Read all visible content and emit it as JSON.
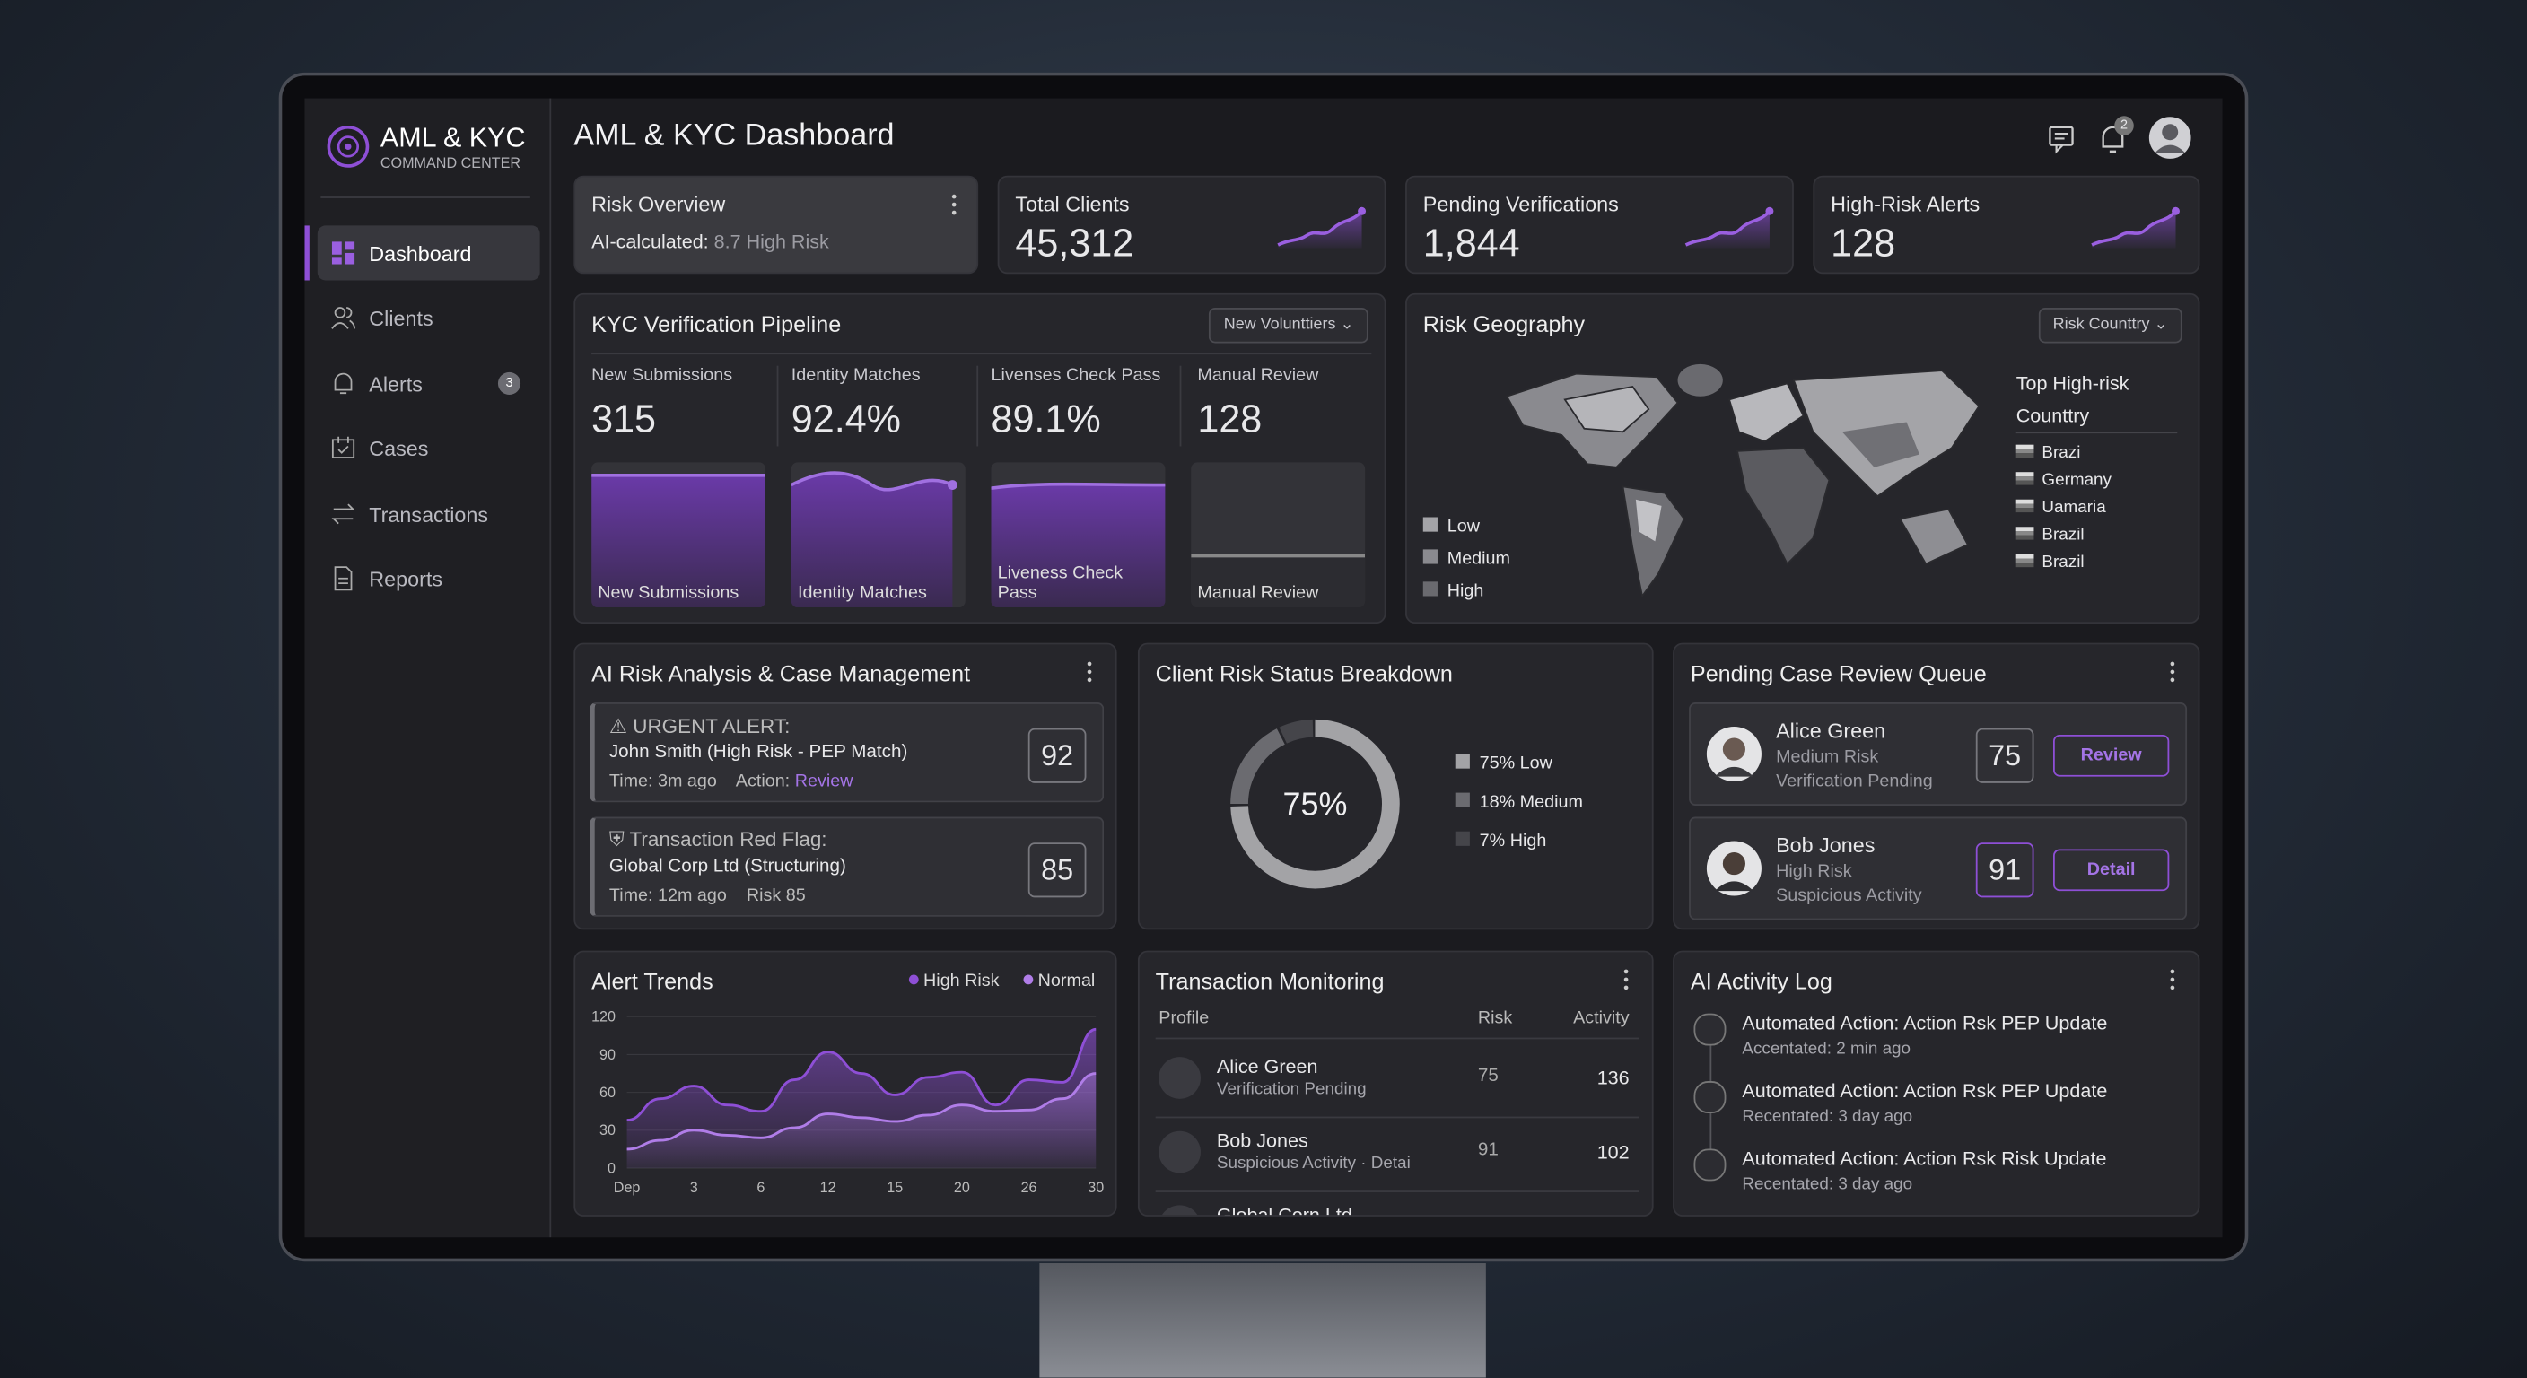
{
  "sidebar": {
    "brand": "AML & KYC",
    "subtitle": "COMMAND CENTER",
    "nav": [
      {
        "label": "Dashboard"
      },
      {
        "label": "Clients"
      },
      {
        "label": "Alerts",
        "badge": 3
      },
      {
        "label": "Cases"
      },
      {
        "label": "Transactions"
      },
      {
        "label": "Reports"
      }
    ]
  },
  "header": {
    "title": "AML & KYC Dashboard",
    "notifications": 2
  },
  "kpis": [
    {
      "label": "Risk Overview",
      "detail": "AI-calculated:",
      "detail_value": "8.7 High Risk"
    },
    {
      "label": "Total Clients",
      "value": "45,312"
    },
    {
      "label": "Pending Verifications",
      "value": "1,844"
    },
    {
      "label": "High-Risk Alerts",
      "value": 128
    }
  ],
  "pipeline": {
    "title": "KYC Verification Pipeline",
    "filter": "New Volunttiers",
    "stats": [
      {
        "label": "New Submissions",
        "value": 315
      },
      {
        "label": "Identity Matches",
        "value": "92.4%"
      },
      {
        "label": "Livenses Check Pass",
        "value": "89.1%"
      },
      {
        "label": "Manual Review",
        "value": 128
      }
    ],
    "bars": [
      "New Submissions",
      "Identity Matches",
      "Liveness Check Pass",
      "Manual Review"
    ]
  },
  "geography": {
    "title": "Risk Geography",
    "filter": "Risk Counttry",
    "legend": [
      "Low",
      "Medium",
      "High"
    ],
    "top_title": "Top High-risk Counttry",
    "countries": [
      "Brazi",
      "Germany",
      "Uamaria",
      "Brazil",
      "Brazil"
    ]
  },
  "ai_risk": {
    "title": "AI Risk Analysis & Case Management",
    "alerts": [
      {
        "heading": "URGENT ALERT:",
        "subject": "John Smith (High Risk - PEP Match)",
        "time": "Time: 3m ago",
        "action_label": "Action:",
        "action": "Review",
        "score": 92
      },
      {
        "heading": "Transaction Red Flag:",
        "subject": "Global Corp Ltd (Structuring)",
        "time": "Time: 12m ago",
        "risk": "Risk 85",
        "score": 85
      }
    ]
  },
  "risk_breakdown": {
    "title": "Client Risk Status Breakdown",
    "center_label": "75%",
    "segments": [
      {
        "label": "75% Low",
        "value": 75,
        "color": "#a3a3a6"
      },
      {
        "label": "18% Medium",
        "value": 18,
        "color": "#6b6b70"
      },
      {
        "label": "7% High",
        "value": 7,
        "color": "#45454a"
      }
    ]
  },
  "case_queue": {
    "title": "Pending Case Review Queue",
    "cases": [
      {
        "name": "Alice Green",
        "risk": "Medium Risk",
        "status": "Verification Pending",
        "score": 75,
        "action": "Review"
      },
      {
        "name": "Bob Jones",
        "risk": "High Risk",
        "status": "Suspicious Activity",
        "score": 91,
        "action": "Detail"
      }
    ]
  },
  "alert_trends": {
    "title": "Alert Trends",
    "categories": [
      "Dep",
      null,
      "3",
      null,
      "6",
      null,
      "12",
      null,
      "15",
      null,
      "20",
      null,
      "26",
      null,
      "30"
    ],
    "series": [
      {
        "name": "High Risk",
        "color": "#8e4fd6",
        "values": [
          38,
          55,
          65,
          50,
          45,
          70,
          92,
          75,
          58,
          72,
          76,
          50,
          70,
          68,
          110
        ]
      },
      {
        "name": "Normal",
        "color": "#b07de8",
        "values": [
          15,
          22,
          30,
          26,
          24,
          32,
          43,
          40,
          37,
          42,
          50,
          45,
          46,
          55,
          75
        ]
      }
    ],
    "ylim": [
      0,
      120
    ],
    "yticks": [
      0,
      30,
      60,
      90,
      120
    ]
  },
  "transactions": {
    "title": "Transaction Monitoring",
    "columns": [
      "Profile",
      "Risk",
      "Activity"
    ],
    "rows": [
      {
        "name": "Alice Green",
        "detail": "Verification Pending",
        "risk": 75,
        "activity": 136
      },
      {
        "name": "Bob Jones",
        "detail": "Suspicious Activity · Detai",
        "risk": 91,
        "activity": 102
      },
      {
        "name": "Global Corn Ltd"
      }
    ]
  },
  "activity_log": {
    "title": "AI Activity Log",
    "items": [
      {
        "action": "Automated Action: Action Rsk PEP Update",
        "meta": "Accentated: 2 min ago"
      },
      {
        "action": "Automated Action: Action Rsk PEP Update",
        "meta": "Recentated: 3 day ago"
      },
      {
        "action": "Automated Action: Action Rsk Risk Update",
        "meta": "Recentated: 3 day ago"
      }
    ]
  }
}
